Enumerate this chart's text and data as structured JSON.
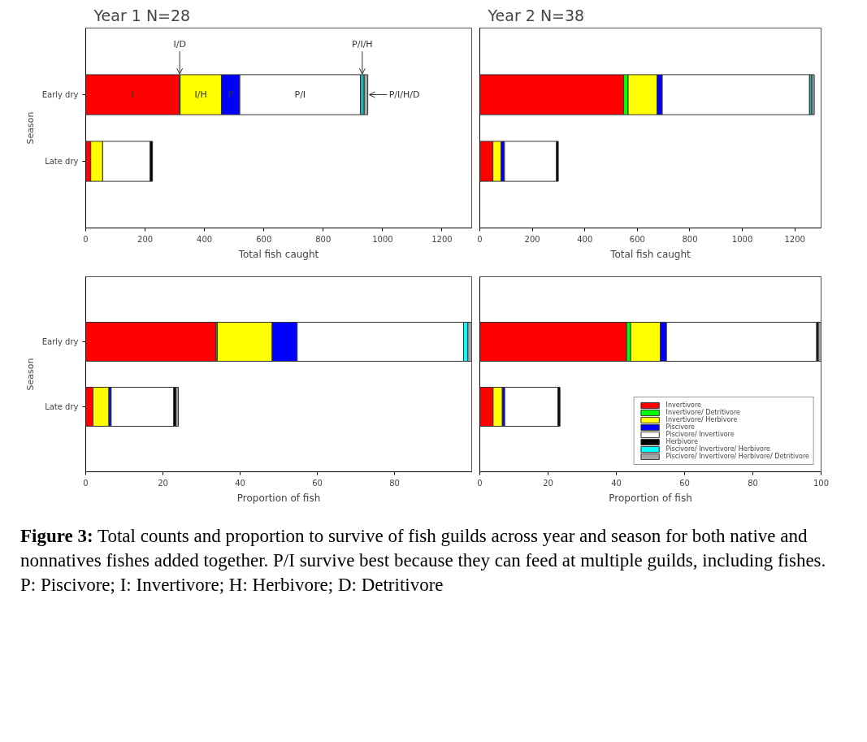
{
  "chart_data": [
    {
      "type": "bar",
      "orientation": "horizontal",
      "stacked": true,
      "title": "Year 1      N=28",
      "xlabel": "Total fish caught",
      "ylabel": "Season",
      "categories": [
        "Early dry",
        "Late dry"
      ],
      "xlim": [
        0,
        1300
      ],
      "xticks": [
        0,
        200,
        400,
        600,
        800,
        1000,
        1200
      ],
      "series": [
        {
          "color": "#ff0000",
          "values": [
            315,
            17
          ],
          "value_labels": [
            "I",
            null
          ]
        },
        {
          "color": "#00ff00",
          "values": [
            3,
            null
          ],
          "value_labels": [
            "I/D",
            null
          ]
        },
        {
          "color": "#ffff00",
          "values": [
            139,
            40
          ],
          "value_labels": [
            "I/H",
            null
          ]
        },
        {
          "color": "#0000ff",
          "values": [
            62,
            null
          ],
          "value_labels": [
            "P",
            null
          ]
        },
        {
          "color": "#ffffff",
          "values": [
            406,
            160
          ],
          "value_labels": [
            "P/I",
            null
          ]
        },
        {
          "color": "#000000",
          "values": [
            null,
            8
          ]
        },
        {
          "color": "#20b2aa",
          "values": [
            13,
            null
          ],
          "value_labels": [
            "P/I/H",
            null
          ]
        },
        {
          "color": "#a6a6a6",
          "values": [
            12,
            null
          ],
          "value_labels": [
            "P/I/H/D",
            null
          ]
        }
      ]
    },
    {
      "type": "bar",
      "orientation": "horizontal",
      "stacked": true,
      "title": "Year 2      N=38",
      "xlabel": "Total fish caught",
      "tick_labels": "x",
      "categories": [
        null,
        null
      ],
      "xlim": [
        0,
        1300
      ],
      "xticks": [
        0,
        200,
        400,
        600,
        800,
        1000,
        1200
      ],
      "series": [
        {
          "color": "#ff0000",
          "values": [
            548,
            50
          ]
        },
        {
          "color": "#00ff00",
          "values": [
            17,
            null
          ]
        },
        {
          "color": "#ffff00",
          "values": [
            110,
            31
          ]
        },
        {
          "color": "#0000ff",
          "values": [
            20,
            13
          ]
        },
        {
          "color": "#ffffff",
          "values": [
            561,
            198
          ]
        },
        {
          "color": "#000000",
          "values": [
            null,
            7
          ]
        },
        {
          "color": "#20b2aa",
          "values": [
            9,
            null
          ]
        },
        {
          "color": "#a6a6a6",
          "values": [
            9,
            null
          ]
        }
      ]
    },
    {
      "type": "bar",
      "orientation": "horizontal",
      "stacked": true,
      "xlabel": "Proportion of fish",
      "ylabel": "Season",
      "categories": [
        "Early dry",
        "Late dry"
      ],
      "xlim": [
        0,
        100
      ],
      "xticks": [
        0,
        20,
        40,
        60,
        80
      ],
      "series": [
        {
          "color": "#ff0000",
          "values": [
            33.8,
            1.9
          ]
        },
        {
          "color": "#00ff00",
          "values": [
            0.3,
            null
          ]
        },
        {
          "color": "#ffff00",
          "values": [
            14.2,
            4.1
          ]
        },
        {
          "color": "#0000ff",
          "values": [
            6.5,
            0.6
          ]
        },
        {
          "color": "#ffffff",
          "values": [
            43.1,
            16.2
          ]
        },
        {
          "color": "#000000",
          "values": [
            null,
            0.6
          ]
        },
        {
          "color": "#00ffff",
          "values": [
            1.1,
            null
          ]
        },
        {
          "color": "#a6a6a6",
          "values": [
            1.0,
            0.6
          ]
        }
      ]
    },
    {
      "type": "bar",
      "orientation": "horizontal",
      "stacked": true,
      "xlabel": "Proportion of fish",
      "tick_labels": "x",
      "legend": "bottom right",
      "categories": [
        null,
        null
      ],
      "xlim": [
        0,
        100
      ],
      "xticks": [
        0,
        20,
        40,
        60,
        80,
        100
      ],
      "series": [
        {
          "name": "Invertivore",
          "color": "#ff0000",
          "values": [
            43.0,
            3.9
          ]
        },
        {
          "name": "Invertivore/ Detritivore",
          "color": "#00ff00",
          "values": [
            1.2,
            null
          ]
        },
        {
          "name": "Invertivore/ Herbivore",
          "color": "#ffff00",
          "values": [
            8.7,
            2.7
          ]
        },
        {
          "name": "Piscivore",
          "color": "#0000ff",
          "values": [
            1.8,
            0.7
          ]
        },
        {
          "name": "Piscivore/ Invertivore",
          "color": "#ffffff",
          "values": [
            44.0,
            15.6
          ]
        },
        {
          "name": "Herbivore",
          "color": "#000000",
          "values": [
            0.5,
            0.6
          ]
        },
        {
          "name": "Piscivore/ Invertivore/ Herbivore",
          "color": "#00ffff",
          "values": [
            null,
            null
          ]
        },
        {
          "name": "Piscivore/ Invertivore/ Herbivore/ Detritivore",
          "color": "#a6a6a6",
          "values": [
            0.8,
            null
          ]
        }
      ],
      "annotations": [
        "Figure 3: Total counts and proportion to survive of fish guilds across year and season for both native and nonnatives fishes added together. P/I survive best because they can feed at multiple guilds, including fishes. P: Piscivore; I: Invertivore; H: Herbivore; D: Detritivore"
      ]
    }
  ]
}
